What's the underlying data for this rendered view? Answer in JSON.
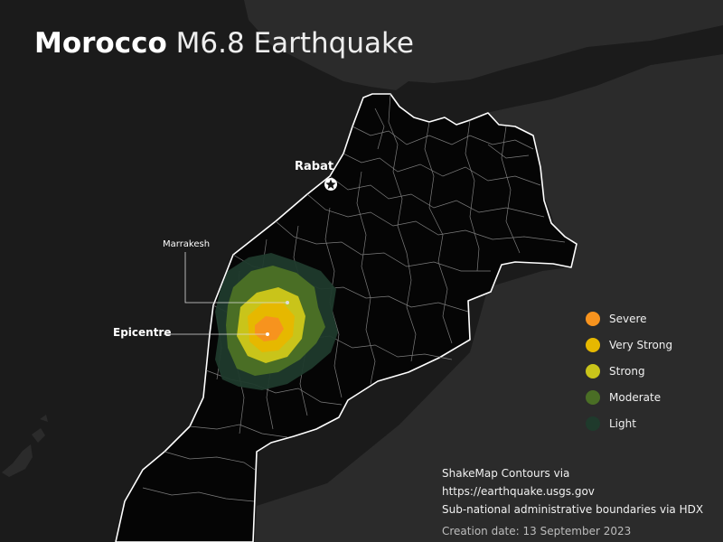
{
  "title": {
    "bold": "Morocco",
    "rest": "M6.8 Earthquake"
  },
  "places": {
    "rabat": "Rabat",
    "marrakesh": "Marrakesh",
    "epicentre": "Epicentre"
  },
  "legend": [
    {
      "label": "Severe",
      "color": "#f7931e"
    },
    {
      "label": "Very Strong",
      "color": "#e6b800"
    },
    {
      "label": "Strong",
      "color": "#c9c41a"
    },
    {
      "label": "Moderate",
      "color": "#4a6e25"
    },
    {
      "label": "Light",
      "color": "#1f3a2c"
    }
  ],
  "credits": {
    "line1": "ShakeMap Contours via https://earthquake.usgs.gov",
    "line2": "Sub-national administrative boundaries via HDX",
    "date": "Creation date: 13 September 2023"
  },
  "colors": {
    "background": "#1b1b1b",
    "land_outside": "#2b2b2b",
    "morocco": "#050505",
    "border": "#ffffff"
  }
}
